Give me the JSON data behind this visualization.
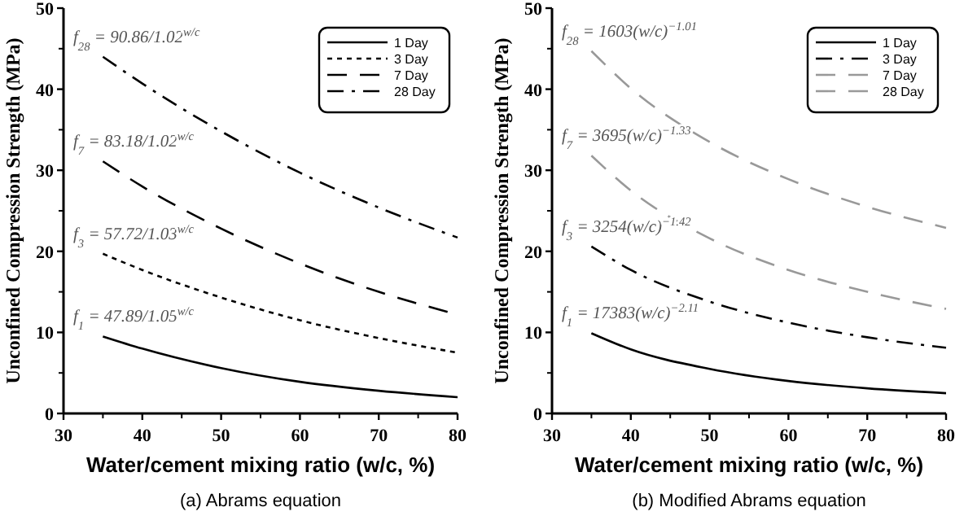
{
  "chart_data": [
    {
      "type": "line",
      "title": "(a)  Abrams equation",
      "xlabel": "Water/cement mixing ratio (w/c, %)",
      "ylabel": "Unconfined Compression Strength (MPa)",
      "x": [
        35,
        40,
        50,
        60,
        70,
        80
      ],
      "xlim": [
        30,
        80
      ],
      "xticks": [
        30,
        40,
        50,
        60,
        70,
        80
      ],
      "ylim": [
        0,
        50
      ],
      "yticks": [
        0,
        10,
        20,
        30,
        40,
        50
      ],
      "grid": false,
      "legend": "top right",
      "marker": "none",
      "series": [
        {
          "name": "1 Day",
          "color": "#000000",
          "line_style": "solid",
          "values": [
            9.5,
            8.0,
            5.6,
            3.9,
            2.8,
            2.0
          ]
        },
        {
          "name": "3 Day",
          "color": "#000000",
          "line_style": "dotted",
          "values": [
            19.7,
            17.7,
            14.3,
            11.5,
            9.3,
            7.5
          ]
        },
        {
          "name": "7 Day",
          "color": "#000000",
          "line_style": "dashed",
          "values": [
            31.1,
            28.0,
            22.8,
            18.5,
            15.0,
            12.2
          ]
        },
        {
          "name": "28 Day",
          "color": "#000000",
          "line_style": "dashdot",
          "values": [
            44.0,
            40.7,
            34.8,
            29.7,
            25.4,
            21.7
          ]
        }
      ],
      "annotations": [
        "f$_{28}$ = 90.86/1.02$^{w/c}$",
        "f$_{7}$ = 83.18/1.02$^{w/c}$",
        "f$_{3}$ = 57.72/1.03$^{w/c}$",
        "f$_{1}$ = 47.89/1.05$^{w/c}$"
      ]
    },
    {
      "type": "line",
      "title": "(b)  Modified Abrams equation",
      "xlabel": "Water/cement mixing ratio (w/c, %)",
      "ylabel": "Unconfined Compression Strength (MPa)",
      "x": [
        35,
        40,
        50,
        60,
        70,
        80
      ],
      "xlim": [
        30,
        80
      ],
      "xticks": [
        30,
        40,
        50,
        60,
        70,
        80
      ],
      "ylim": [
        0,
        50
      ],
      "yticks": [
        0,
        10,
        20,
        30,
        40,
        50
      ],
      "grid": false,
      "legend": "top right",
      "marker": "none",
      "series": [
        {
          "name": "1 Day",
          "color": "#000000",
          "line_style": "solid",
          "values": [
            9.9,
            7.9,
            5.5,
            4.0,
            3.1,
            2.5
          ]
        },
        {
          "name": "3 Day",
          "color": "#000000",
          "line_style": "dashdot",
          "values": [
            20.6,
            17.7,
            13.8,
            11.2,
            9.4,
            8.1
          ]
        },
        {
          "name": "7 Day",
          "color": "#999999",
          "line_style": "dashed",
          "values": [
            31.8,
            27.5,
            21.6,
            17.7,
            15.0,
            12.9
          ]
        },
        {
          "name": "28 Day",
          "color": "#999999",
          "line_style": "dashed",
          "values": [
            44.7,
            40.1,
            33.5,
            28.9,
            25.5,
            22.9
          ]
        }
      ],
      "annotations": [
        "f$_{28}$ = 1603(w/c)$^{−1.01}$",
        "f$_{7}$ = 3695(w/c)$^{−1.33}$",
        "f$_{3}$ = 3254(w/c)$^{−1.42}$",
        "f$_{1}$ = 17383(w/c)$^{−2.11}$"
      ]
    }
  ]
}
